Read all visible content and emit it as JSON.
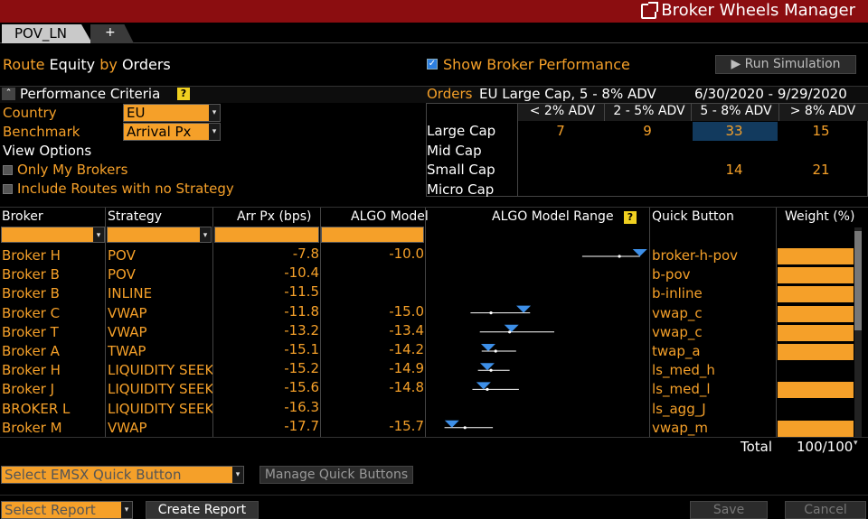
{
  "window": {
    "title": "Broker Wheels Manager"
  },
  "tabs": [
    {
      "label": "POV_LN"
    },
    {
      "label": "+"
    }
  ],
  "route": {
    "w1": "Route",
    "w2": "Equity",
    "w3": "by",
    "w4": "Orders"
  },
  "show_perf": {
    "label": "Show Broker Performance",
    "checked": true
  },
  "run_sim": {
    "label": "▶ Run Simulation"
  },
  "perf_criteria": {
    "label": "Performance Criteria",
    "help": "?"
  },
  "orders": {
    "label": "Orders",
    "desc": "EU Large Cap, 5 - 8% ADV",
    "dates": "6/30/2020 - 9/29/2020"
  },
  "country": {
    "label": "Country",
    "value": "EU"
  },
  "benchmark": {
    "label": "Benchmark",
    "value": "Arrival Px"
  },
  "view_options": {
    "label": "View Options",
    "only_my": "Only My Brokers",
    "include_routes": "Include Routes with no Strategy"
  },
  "adv": {
    "cols": [
      "< 2% ADV",
      "2 - 5% ADV",
      "5 - 8% ADV",
      "> 8% ADV"
    ],
    "rows": [
      {
        "label": "Large Cap",
        "vals": [
          "7",
          "9",
          "33",
          "15"
        ]
      },
      {
        "label": "Mid Cap",
        "vals": [
          "",
          "",
          "",
          ""
        ]
      },
      {
        "label": "Small Cap",
        "vals": [
          "",
          "",
          "14",
          "21"
        ]
      },
      {
        "label": "Micro Cap",
        "vals": [
          "",
          "",
          "",
          ""
        ]
      }
    ]
  },
  "table": {
    "headers": {
      "broker": "Broker",
      "strategy": "Strategy",
      "arr": "Arr Px (bps)",
      "algo": "ALGO Model",
      "range": "ALGO Model Range",
      "range_help": "?",
      "quick": "Quick Button",
      "weight": "Weight (%)"
    },
    "rows": [
      {
        "broker": "Broker H",
        "strategy": "POV",
        "arr": "-7.8",
        "algo": "-10.0",
        "quick": "broker-h-pov",
        "weight": 1,
        "rng": {
          "lo": -13.2,
          "hi": -7.0,
          "dot": -9.2,
          "mark": -7.0
        }
      },
      {
        "broker": "Broker B",
        "strategy": "POV",
        "arr": "-10.4",
        "algo": "",
        "quick": "b-pov",
        "weight": 1,
        "rng": null
      },
      {
        "broker": "Broker B",
        "strategy": "INLINE",
        "arr": "-11.5",
        "algo": "",
        "quick": "b-inline",
        "weight": 1,
        "rng": null
      },
      {
        "broker": "Broker C",
        "strategy": "VWAP",
        "arr": "-11.8",
        "algo": "-15.0",
        "quick": "vwap_c",
        "weight": 1,
        "rng": {
          "lo": -25.2,
          "hi": -18.8,
          "dot": -23.0,
          "mark": -19.5
        }
      },
      {
        "broker": "Broker T",
        "strategy": "VWAP",
        "arr": "-13.2",
        "algo": "-13.4",
        "quick": "vwap_c",
        "weight": 1,
        "rng": {
          "lo": -24.2,
          "hi": -16.2,
          "dot": -21.0,
          "mark": -20.8
        }
      },
      {
        "broker": "Broker A",
        "strategy": "TWAP",
        "arr": "-15.1",
        "algo": "-14.2",
        "quick": "twap_a",
        "weight": 1,
        "rng": {
          "lo": -24.0,
          "hi": -20.3,
          "dot": -22.5,
          "mark": -23.3
        }
      },
      {
        "broker": "Broker H",
        "strategy": "LIQUIDITY SEEK",
        "arr": "-15.2",
        "algo": "-14.9",
        "quick": "ls_med_h",
        "weight": 0,
        "rng": {
          "lo": -24.4,
          "hi": -21.0,
          "dot": -23.0,
          "mark": -23.4
        }
      },
      {
        "broker": "Broker J",
        "strategy": "LIQUIDITY SEEK",
        "arr": "-15.6",
        "algo": "-14.8",
        "quick": "ls_med_l",
        "weight": 1,
        "rng": {
          "lo": -25.0,
          "hi": -20.0,
          "dot": -23.4,
          "mark": -23.8
        }
      },
      {
        "broker": "BROKER L",
        "strategy": "LIQUIDITY SEEK",
        "arr": "-16.3",
        "algo": "",
        "quick": "ls_agg_J",
        "weight": 0,
        "rng": null
      },
      {
        "broker": "Broker M",
        "strategy": "VWAP",
        "arr": "-17.7",
        "algo": "-15.7",
        "quick": "vwap_m",
        "weight": 1,
        "rng": {
          "lo": -28.0,
          "hi": -22.8,
          "dot": -25.8,
          "mark": -27.2
        }
      }
    ],
    "total_label": "Total",
    "total_value": "100/100"
  },
  "bottom": {
    "emsx_placeholder": "Select EMSX Quick Button",
    "manage": "Manage Quick Buttons",
    "report_placeholder": "Select Report",
    "create_report": "Create Report",
    "save": "Save",
    "cancel": "Cancel"
  },
  "colors": {
    "accent": "#f5a029",
    "titlebar": "#8b0d10",
    "highlight": "#123a5e",
    "marker": "#3d8fe8"
  }
}
